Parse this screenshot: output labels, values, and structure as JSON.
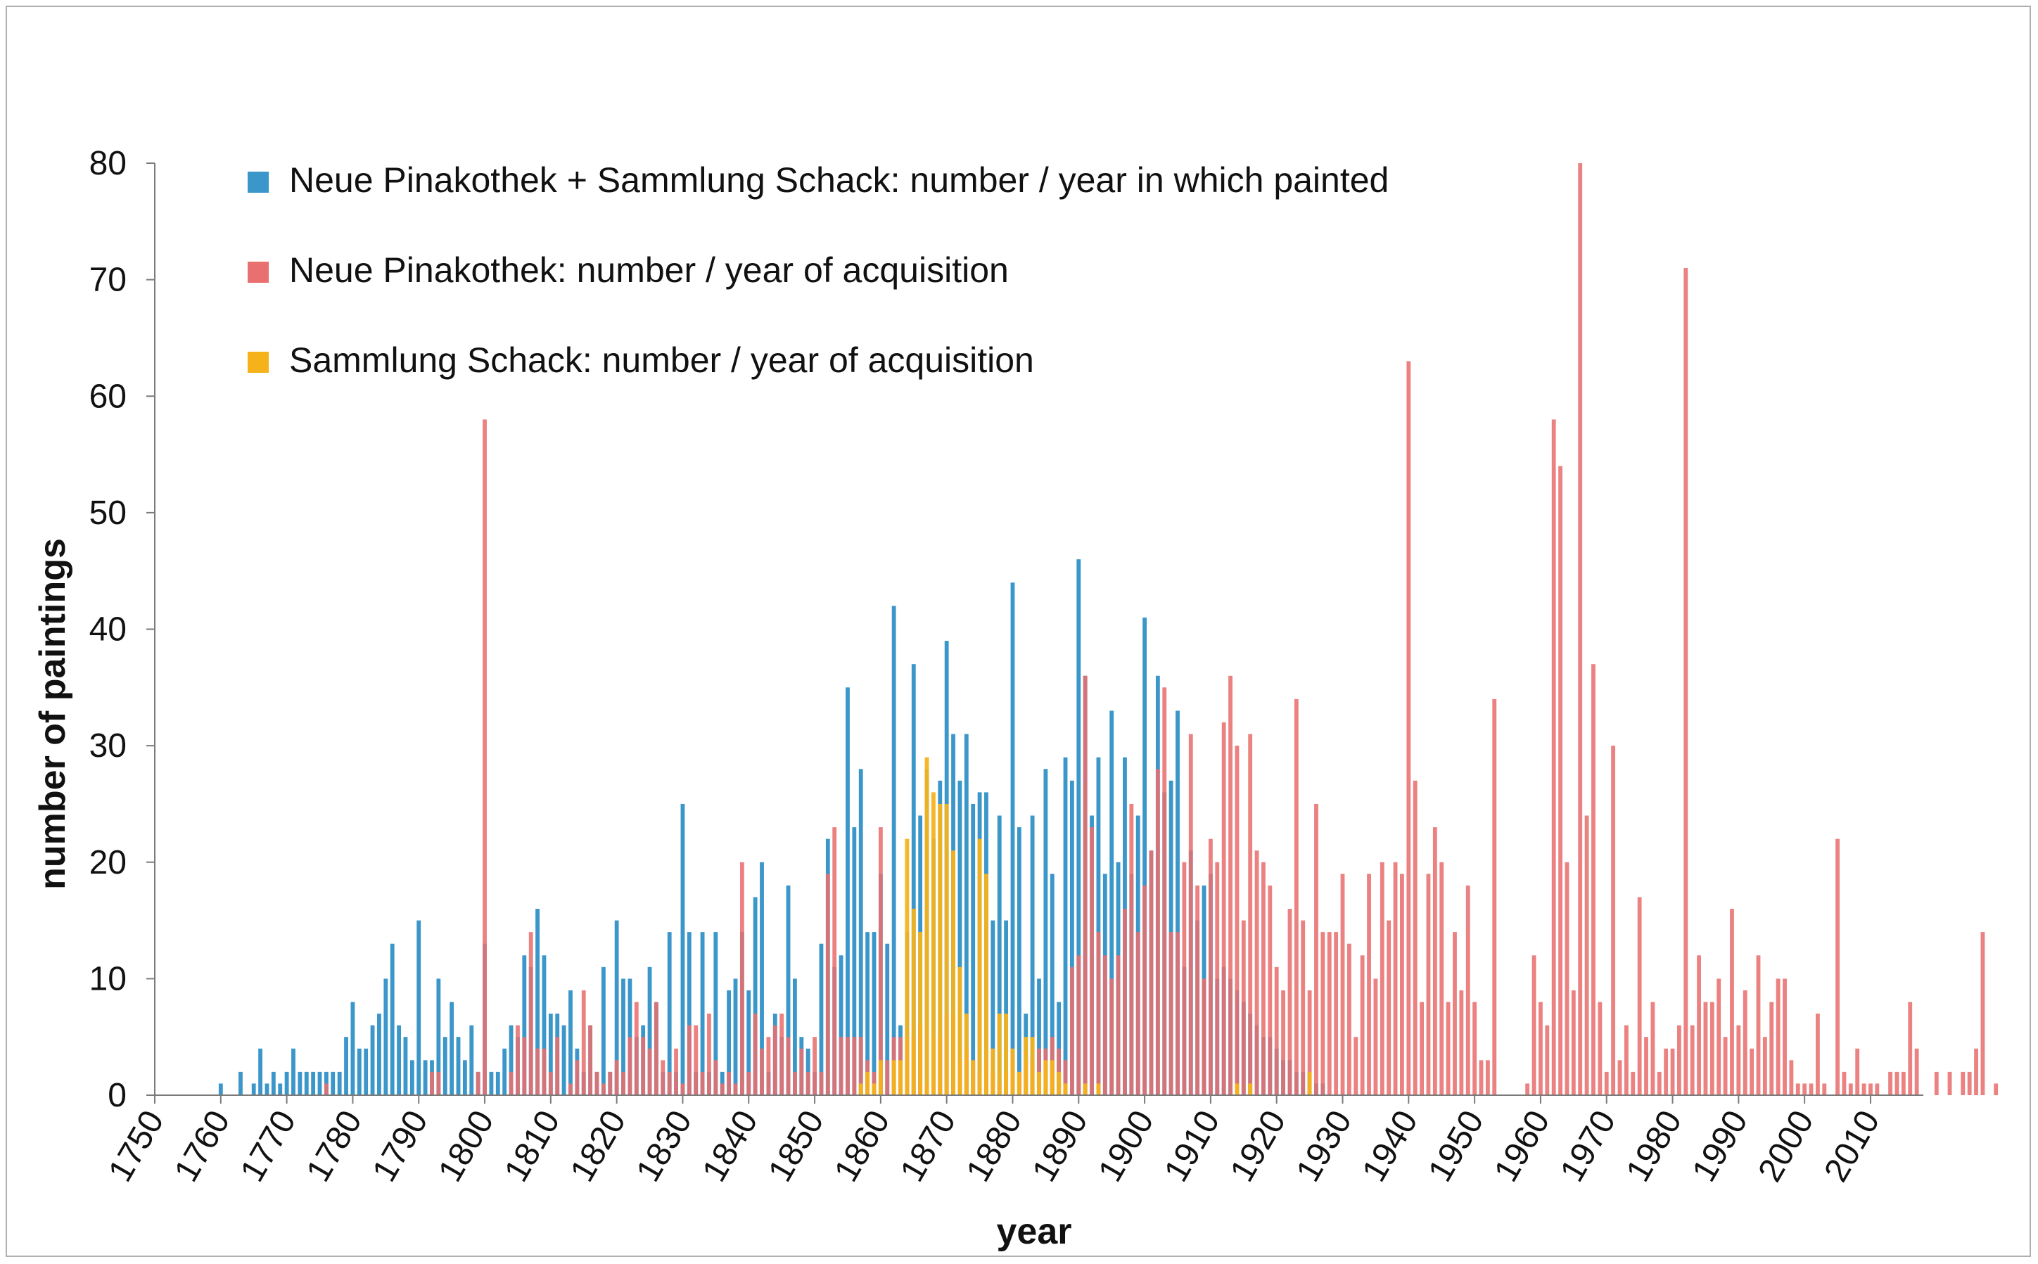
{
  "chart_data": {
    "type": "bar",
    "xlabel": "year",
    "ylabel": "number of paintings",
    "xlim": [
      1750,
      2018
    ],
    "ylim": [
      0,
      80
    ],
    "x_ticks": [
      "1750",
      "1760",
      "1770",
      "1780",
      "1790",
      "1800",
      "1810",
      "1820",
      "1830",
      "1840",
      "1850",
      "1860",
      "1870",
      "1880",
      "1890",
      "1900",
      "1910",
      "1920",
      "1930",
      "1940",
      "1950",
      "1960",
      "1970",
      "1980",
      "1990",
      "2000",
      "2010"
    ],
    "y_ticks": [
      "0",
      "10",
      "20",
      "30",
      "40",
      "50",
      "60",
      "70",
      "80"
    ],
    "grid": false,
    "legend_position": "top-left",
    "series": [
      {
        "name": "Neue Pinakothek + Sammlung Schack: number / year in which painted",
        "color": "#3b96c9",
        "x_start": 1760,
        "values": [
          1,
          0,
          0,
          2,
          0,
          1,
          4,
          1,
          2,
          1,
          2,
          4,
          2,
          2,
          2,
          2,
          2,
          2,
          2,
          5,
          8,
          4,
          4,
          6,
          7,
          10,
          13,
          6,
          5,
          3,
          15,
          3,
          3,
          10,
          5,
          8,
          5,
          3,
          6,
          2,
          13,
          2,
          2,
          4,
          6,
          5,
          12,
          11,
          16,
          12,
          7,
          7,
          6,
          9,
          4,
          2,
          6,
          2,
          11,
          2,
          15,
          10,
          10,
          5,
          6,
          11,
          8,
          2,
          14,
          2,
          25,
          14,
          2,
          14,
          2,
          14,
          2,
          9,
          10,
          14,
          9,
          17,
          20,
          2,
          7,
          5,
          18,
          10,
          5,
          4,
          2,
          13,
          22,
          11,
          12,
          35,
          23,
          28,
          14,
          14,
          19,
          13,
          42,
          6,
          14,
          37,
          24,
          28,
          22,
          27,
          39,
          31,
          27,
          31,
          25,
          26,
          26,
          15,
          24,
          15,
          44,
          23,
          7,
          24,
          10,
          28,
          19,
          8,
          29,
          27,
          46,
          36,
          24,
          29,
          19,
          33,
          20,
          29,
          19,
          24,
          41,
          21,
          36,
          26,
          27,
          33,
          11,
          21,
          15,
          18,
          19,
          10,
          11,
          10,
          9,
          8,
          7,
          6,
          5,
          5,
          4,
          3,
          3,
          2,
          2,
          2,
          1,
          1,
          0,
          0,
          0,
          0,
          0,
          0,
          0,
          0,
          0,
          0,
          0,
          0,
          0,
          0,
          0,
          0,
          0,
          0,
          0,
          0,
          0
        ]
      },
      {
        "name": "Neue Pinakothek: number / year of acquisition",
        "color": "#e8706e",
        "x_start": 1776,
        "values": [
          1,
          0,
          0,
          0,
          0,
          0,
          0,
          0,
          0,
          0,
          0,
          0,
          0,
          0,
          0,
          0,
          2,
          2,
          0,
          0,
          0,
          0,
          0,
          2,
          58,
          0,
          0,
          0,
          2,
          6,
          5,
          14,
          4,
          4,
          2,
          5,
          0,
          1,
          3,
          9,
          6,
          2,
          1,
          2,
          3,
          2,
          5,
          8,
          5,
          4,
          8,
          3,
          2,
          4,
          1,
          6,
          6,
          2,
          7,
          3,
          1,
          2,
          1,
          20,
          2,
          7,
          4,
          5,
          6,
          7,
          5,
          2,
          4,
          2,
          5,
          2,
          19,
          23,
          5,
          5,
          5,
          5,
          3,
          2,
          23,
          3,
          5,
          5,
          5,
          5,
          6,
          1,
          5,
          5,
          7,
          7,
          3,
          4,
          3,
          2,
          3,
          2,
          1,
          2,
          3,
          2,
          3,
          3,
          4,
          4,
          5,
          4,
          3,
          11,
          12,
          36,
          23,
          14,
          12,
          10,
          12,
          16,
          25,
          14,
          18,
          21,
          28,
          35,
          14,
          14,
          20,
          31,
          18,
          10,
          22,
          20,
          32,
          36,
          30,
          15,
          31,
          21,
          20,
          18,
          11,
          9,
          16,
          34,
          15,
          9,
          25,
          14,
          14,
          14,
          19,
          13,
          5,
          12,
          19,
          10,
          20,
          15,
          20,
          19,
          63,
          27,
          8,
          19,
          23,
          20,
          8,
          14,
          9,
          18,
          8,
          3,
          3,
          34,
          0,
          0,
          0,
          0,
          1,
          12,
          8,
          6,
          58,
          54,
          20,
          9,
          80,
          24,
          37,
          8,
          2,
          30,
          3,
          6,
          2,
          17,
          5,
          8,
          2,
          4,
          4,
          6,
          71,
          6,
          12,
          8,
          8,
          10,
          5,
          16,
          6,
          9,
          4,
          12,
          5,
          8,
          10,
          10,
          3,
          1,
          1,
          1,
          7,
          1,
          0,
          22,
          2,
          1,
          4,
          1,
          1,
          1,
          0,
          2,
          2,
          2,
          8,
          4,
          0,
          0,
          2,
          0,
          2,
          0,
          2,
          2,
          4,
          14,
          0,
          1
        ]
      },
      {
        "name": "Sammlung Schack: number / year of acquisition",
        "color": "#f5b21a",
        "x_start": 1857,
        "values": [
          1,
          2,
          1,
          3,
          0,
          3,
          3,
          22,
          16,
          14,
          29,
          26,
          25,
          25,
          21,
          11,
          7,
          3,
          22,
          19,
          4,
          7,
          7,
          4,
          2,
          5,
          5,
          2,
          3,
          3,
          2,
          1,
          0,
          0,
          1,
          0,
          1,
          0,
          0,
          0,
          0,
          0,
          0,
          0,
          0,
          0,
          0,
          0,
          0,
          0,
          0,
          0,
          0,
          0,
          0,
          0,
          0,
          1,
          0,
          1,
          0,
          0,
          0,
          0,
          0,
          0,
          0,
          0,
          2
        ]
      }
    ]
  }
}
